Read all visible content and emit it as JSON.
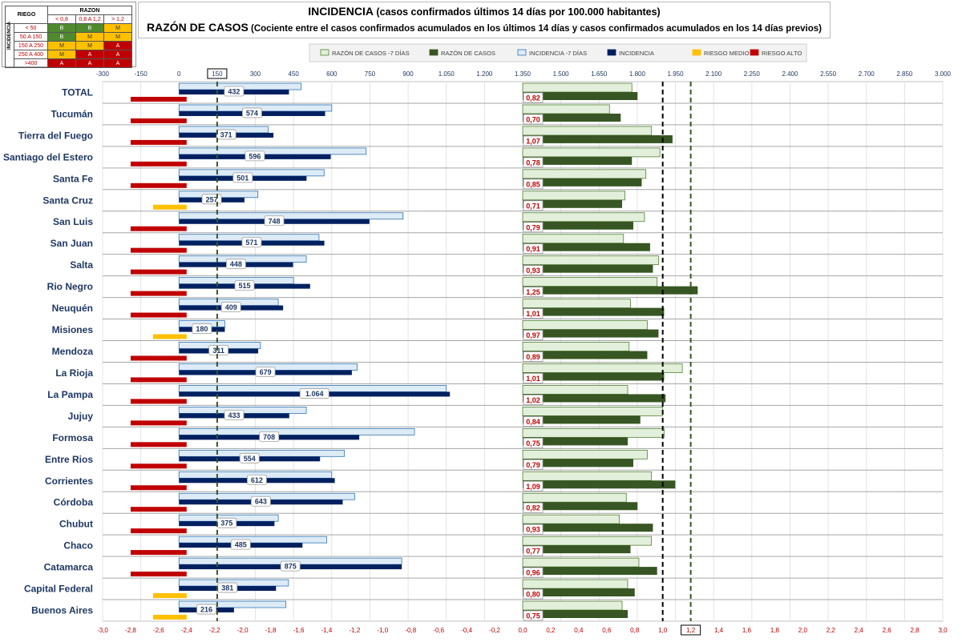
{
  "legend_table": {
    "riesgo_label": "RIEGO",
    "razon_label": "RAZON",
    "incidencia_label": "INCIDENCIA",
    "razon_headers": [
      "< 0,8",
      "0,8 A 1,2",
      "> 1,2"
    ],
    "rows": [
      {
        "label": "< 50",
        "cells": [
          "B",
          "B",
          "M"
        ]
      },
      {
        "label": "50 A 150",
        "cells": [
          "B",
          "M",
          "M"
        ]
      },
      {
        "label": "150 A 250",
        "cells": [
          "M",
          "M",
          "A"
        ]
      },
      {
        "label": "250 A 400",
        "cells": [
          "M",
          "A",
          "A"
        ]
      },
      {
        "label": ">400",
        "cells": [
          "A",
          "A",
          "A"
        ]
      }
    ],
    "cell_colors": {
      "B": "#4f8a2e",
      "M": "#ffc000",
      "A": "#c00000"
    }
  },
  "header": {
    "title1_bold": "INCIDENCIA",
    "title1_rest": " (casos confirmados últimos 14 días por 100.000 habitantes)",
    "title2_bold": "RAZÓN DE CASOS",
    "title2_rest": " (Cociente entre el casos confirmados acumulados en los últimos 14 días y casos confirmados acumulados en los 14 días previos)"
  },
  "chart_data": {
    "type": "bar",
    "orientation": "horizontal",
    "categories": [
      "TOTAL",
      "Tucumán",
      "Tierra del Fuego",
      "Santiago del Estero",
      "Santa Fe",
      "Santa Cruz",
      "San Luis",
      "San Juan",
      "Salta",
      "Rio Negro",
      "Neuquén",
      "Misiones",
      "Mendoza",
      "La Rioja",
      "La Pampa",
      "Jujuy",
      "Formosa",
      "Entre Rios",
      "Corrientes",
      "Córdoba",
      "Chubut",
      "Chaco",
      "Catamarca",
      "Capital Federal",
      "Buenos Aires"
    ],
    "legend": [
      "RAZÓN DE CASOS -7 DÍAS",
      "RAZÓN DE CASOS",
      "INCIDENCIA -7 DÍAS",
      "INCIDENCIA",
      "RIESGO MEDIO",
      "RIESGO ALTO"
    ],
    "colors": {
      "razon_prev": "#e2efda",
      "razon": "#375623",
      "incidencia_prev": "#ddebf7",
      "incidencia": "#002060",
      "riesgo_medio": "#ffc000",
      "riesgo_alto": "#c00000"
    },
    "incidencia": [
      432,
      574,
      371,
      596,
      501,
      257,
      748,
      571,
      448,
      515,
      409,
      180,
      311,
      679,
      1064,
      433,
      708,
      554,
      612,
      643,
      375,
      485,
      875,
      381,
      216
    ],
    "incidencia_labels": [
      "432",
      "574",
      "371",
      "596",
      "501",
      "257",
      "748",
      "571",
      "448",
      "515",
      "409",
      "180",
      "311",
      "679",
      "1.064",
      "433",
      "708",
      "554",
      "612",
      "643",
      "375",
      "485",
      "875",
      "381",
      "216"
    ],
    "incidencia_prev": [
      480,
      600,
      350,
      735,
      570,
      310,
      880,
      550,
      500,
      450,
      390,
      180,
      320,
      700,
      1050,
      500,
      925,
      650,
      600,
      690,
      390,
      580,
      875,
      430,
      420
    ],
    "razon": [
      0.82,
      0.7,
      1.07,
      0.78,
      0.85,
      0.71,
      0.79,
      0.91,
      0.93,
      1.25,
      1.01,
      0.97,
      0.89,
      1.01,
      1.02,
      0.84,
      0.75,
      0.79,
      1.09,
      0.82,
      0.93,
      0.77,
      0.96,
      0.8,
      0.75
    ],
    "razon_labels": [
      "0,82",
      "0,70",
      "1,07",
      "0,78",
      "0,85",
      "0,71",
      "0,79",
      "0,91",
      "0,93",
      "1,25",
      "1,01",
      "0,97",
      "0,89",
      "1,01",
      "1,02",
      "0,84",
      "0,75",
      "0,79",
      "1,09",
      "0,82",
      "0,93",
      "0,77",
      "0,96",
      "0,80",
      "0,75"
    ],
    "razon_prev": [
      0.78,
      0.62,
      0.92,
      0.98,
      0.88,
      0.73,
      0.87,
      0.72,
      0.97,
      0.96,
      0.77,
      0.89,
      0.76,
      1.14,
      0.75,
      1.0,
      1.01,
      0.89,
      0.92,
      0.74,
      0.69,
      0.92,
      0.83,
      0.75,
      0.71
    ],
    "riesgo": [
      "A",
      "A",
      "A",
      "A",
      "A",
      "M",
      "A",
      "A",
      "A",
      "A",
      "A",
      "M",
      "A",
      "A",
      "A",
      "A",
      "A",
      "A",
      "A",
      "A",
      "A",
      "A",
      "A",
      "M",
      "M"
    ],
    "top_axis": {
      "ticks": [
        "-300",
        "-150",
        "0",
        "150",
        "300",
        "450",
        "600",
        "750",
        "900",
        "1.050",
        "1.200",
        "1.350",
        "1.500",
        "1.650",
        "1.800",
        "1.950",
        "2.100",
        "2.250",
        "2.400",
        "2.550",
        "2.700",
        "2.850",
        "3.000"
      ],
      "min": -300,
      "max": 3000,
      "step": 150,
      "boxed_tick": "150"
    },
    "bottom_axis": {
      "ticks": [
        "-3,0",
        "-2,8",
        "-2,6",
        "-2,4",
        "-2,2",
        "-2,0",
        "-1,8",
        "-1,6",
        "-1,4",
        "-1,2",
        "-1,0",
        "-0,8",
        "-0,6",
        "-0,4",
        "-0,2",
        "0,0",
        "0,2",
        "0,4",
        "0,6",
        "0,8",
        "1,0",
        "1,2",
        "1,4",
        "1,6",
        "1,8",
        "2,0",
        "2,2",
        "2,4",
        "2,6",
        "2,8",
        "3,0"
      ],
      "min": -3.0,
      "max": 3.0,
      "step": 0.2,
      "boxed_tick": "1,2"
    },
    "reference_lines": {
      "incidencia": 150,
      "razon": [
        1.0,
        1.2
      ]
    },
    "grid": true
  }
}
